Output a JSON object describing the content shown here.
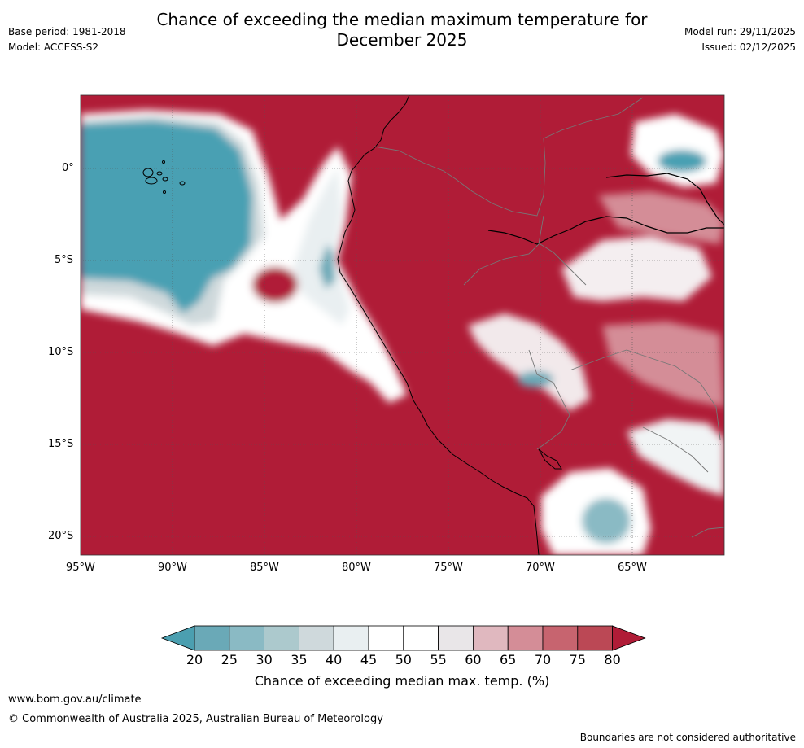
{
  "header": {
    "title_line1": "Chance of exceeding the median maximum temperature for",
    "title_line2": "December 2025",
    "base_period": "Base period: 1981-2018",
    "model": "Model: ACCESS-S2",
    "model_run": "Model run: 29/11/2025",
    "issued": "Issued: 02/12/2025"
  },
  "map": {
    "lat_ticks": [
      "0°",
      "5°S",
      "10°S",
      "15°S",
      "20°S"
    ],
    "lon_ticks": [
      "95°W",
      "90°W",
      "85°W",
      "80°W",
      "75°W",
      "70°W",
      "65°W"
    ],
    "colors": {
      "high": "#b01c37",
      "low": "#4aa0b3",
      "neutral": "#ffffff"
    }
  },
  "colorbar": {
    "ticks": [
      "20",
      "25",
      "30",
      "35",
      "40",
      "45",
      "50",
      "55",
      "60",
      "65",
      "70",
      "75",
      "80"
    ],
    "colors": [
      "#4b9fb0",
      "#6aa9b7",
      "#8abac4",
      "#acc9cd",
      "#cfd9dc",
      "#e9eff1",
      "#ffffff",
      "#ffffff",
      "#e9e6e8",
      "#e0b8bf",
      "#d48d97",
      "#c7646f",
      "#bb4855",
      "#b01c37"
    ],
    "label": "Chance of exceeding median max. temp. (%)"
  },
  "footer": {
    "website": "www.bom.gov.au/climate",
    "copyright": "© Commonwealth of Australia 2025, Australian Bureau of Meteorology",
    "disclaimer": "Boundaries are not considered authoritative"
  }
}
